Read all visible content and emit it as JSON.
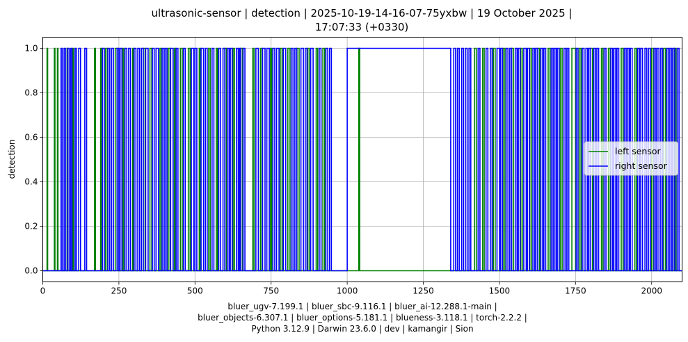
{
  "chart_data": {
    "type": "line",
    "title": [
      "ultrasonic-sensor | detection | 2025-10-19-14-16-07-75yxbw | 19 October 2025 |",
      "17:07:33 (+0330)"
    ],
    "xlabel": [
      "bluer_ugv-7.199.1 | bluer_sbc-9.116.1 | bluer_ai-12.288.1-main |",
      "bluer_objects-6.307.1 | bluer_options-5.181.1 | blueness-3.118.1 | torch-2.2.2 |",
      "Python 3.12.9 | Darwin 23.6.0 | dev | kamangir | Sion"
    ],
    "ylabel": "detection",
    "xlim": [
      0,
      2100
    ],
    "ylim": [
      -0.05,
      1.05
    ],
    "x_ticks": [
      0,
      250,
      500,
      750,
      1000,
      1250,
      1500,
      1750,
      2000
    ],
    "x_tick_labels": [
      "0",
      "250",
      "500",
      "750",
      "1000",
      "1250",
      "1500",
      "1750",
      "2000"
    ],
    "y_ticks": [
      0.0,
      0.2,
      0.4,
      0.6,
      0.8,
      1.0
    ],
    "y_tick_labels": [
      "0.0",
      "0.2",
      "0.4",
      "0.6",
      "0.8",
      "1.0"
    ],
    "grid": true,
    "legend_position": "center-right",
    "series": [
      {
        "name": "left sensor",
        "color": "#008000",
        "values_type": "binary pulses",
        "pulses": [
          [
            14,
            16
          ],
          [
            38,
            40
          ],
          [
            48,
            50
          ],
          [
            80,
            82
          ],
          [
            98,
            101
          ],
          [
            170,
            173
          ],
          [
            190,
            194
          ],
          [
            206,
            212
          ],
          [
            238,
            245
          ],
          [
            262,
            266
          ],
          [
            295,
            298
          ],
          [
            330,
            336
          ],
          [
            352,
            358
          ],
          [
            385,
            390
          ],
          [
            412,
            418
          ],
          [
            432,
            436
          ],
          [
            452,
            458
          ],
          [
            478,
            484
          ],
          [
            514,
            518
          ],
          [
            545,
            550
          ],
          [
            570,
            574
          ],
          [
            598,
            603
          ],
          [
            625,
            630
          ],
          [
            650,
            656
          ],
          [
            690,
            694
          ],
          [
            715,
            720
          ],
          [
            748,
            752
          ],
          [
            780,
            786
          ],
          [
            805,
            812
          ],
          [
            835,
            842
          ],
          [
            870,
            875
          ],
          [
            898,
            903
          ],
          [
            920,
            926
          ],
          [
            1038,
            1041
          ],
          [
            1418,
            1424
          ],
          [
            1445,
            1450
          ],
          [
            1480,
            1486
          ],
          [
            1512,
            1518
          ],
          [
            1540,
            1546
          ],
          [
            1570,
            1575
          ],
          [
            1600,
            1606
          ],
          [
            1626,
            1632
          ],
          [
            1660,
            1666
          ],
          [
            1700,
            1706
          ],
          [
            1738,
            1750
          ],
          [
            1762,
            1768
          ],
          [
            1800,
            1806
          ],
          [
            1835,
            1840
          ],
          [
            1858,
            1864
          ],
          [
            1900,
            1906
          ],
          [
            1945,
            1950
          ],
          [
            2000,
            2006
          ],
          [
            2040,
            2046
          ],
          [
            2075,
            2080
          ]
        ]
      },
      {
        "name": "right sensor",
        "color": "#0000ff",
        "values_type": "binary pulses",
        "pulses": [
          [
            60,
            64
          ],
          [
            70,
            75
          ],
          [
            82,
            87
          ],
          [
            92,
            96
          ],
          [
            106,
            110
          ],
          [
            118,
            124
          ],
          [
            138,
            144
          ],
          [
            196,
            202
          ],
          [
            214,
            220
          ],
          [
            226,
            232
          ],
          [
            244,
            250
          ],
          [
            254,
            260
          ],
          [
            270,
            276
          ],
          [
            282,
            288
          ],
          [
            300,
            306
          ],
          [
            312,
            318
          ],
          [
            324,
            330
          ],
          [
            338,
            346
          ],
          [
            360,
            366
          ],
          [
            372,
            380
          ],
          [
            392,
            398
          ],
          [
            402,
            408
          ],
          [
            420,
            428
          ],
          [
            438,
            444
          ],
          [
            462,
            468
          ],
          [
            488,
            496
          ],
          [
            500,
            506
          ],
          [
            520,
            528
          ],
          [
            534,
            540
          ],
          [
            556,
            562
          ],
          [
            578,
            584
          ],
          [
            592,
            598
          ],
          [
            606,
            612
          ],
          [
            616,
            622
          ],
          [
            636,
            642
          ],
          [
            646,
            650
          ],
          [
            658,
            664
          ],
          [
            700,
            708
          ],
          [
            722,
            730
          ],
          [
            736,
            744
          ],
          [
            756,
            762
          ],
          [
            768,
            776
          ],
          [
            790,
            798
          ],
          [
            816,
            822
          ],
          [
            828,
            834
          ],
          [
            848,
            856
          ],
          [
            862,
            868
          ],
          [
            880,
            888
          ],
          [
            908,
            914
          ],
          [
            930,
            936
          ],
          [
            942,
            948
          ],
          [
            1000,
            1340
          ],
          [
            1350,
            1356
          ],
          [
            1362,
            1368
          ],
          [
            1376,
            1382
          ],
          [
            1388,
            1394
          ],
          [
            1400,
            1406
          ],
          [
            1430,
            1436
          ],
          [
            1456,
            1462
          ],
          [
            1470,
            1476
          ],
          [
            1492,
            1500
          ],
          [
            1504,
            1510
          ],
          [
            1522,
            1528
          ],
          [
            1534,
            1540
          ],
          [
            1552,
            1558
          ],
          [
            1562,
            1568
          ],
          [
            1580,
            1588
          ],
          [
            1592,
            1598
          ],
          [
            1610,
            1616
          ],
          [
            1620,
            1626
          ],
          [
            1636,
            1642
          ],
          [
            1646,
            1652
          ],
          [
            1670,
            1676
          ],
          [
            1680,
            1686
          ],
          [
            1690,
            1696
          ],
          [
            1712,
            1718
          ],
          [
            1722,
            1728
          ],
          [
            1752,
            1758
          ],
          [
            1772,
            1778
          ],
          [
            1784,
            1790
          ],
          [
            1794,
            1800
          ],
          [
            1810,
            1816
          ],
          [
            1820,
            1826
          ],
          [
            1844,
            1850
          ],
          [
            1866,
            1872
          ],
          [
            1876,
            1882
          ],
          [
            1886,
            1892
          ],
          [
            1910,
            1916
          ],
          [
            1920,
            1926
          ],
          [
            1930,
            1936
          ],
          [
            1954,
            1960
          ],
          [
            1964,
            1970
          ],
          [
            1978,
            1984
          ],
          [
            1990,
            1996
          ],
          [
            2008,
            2014
          ],
          [
            2018,
            2024
          ],
          [
            2030,
            2036
          ],
          [
            2050,
            2056
          ],
          [
            2060,
            2066
          ],
          [
            2070,
            2076
          ],
          [
            2084,
            2090
          ]
        ]
      }
    ]
  }
}
